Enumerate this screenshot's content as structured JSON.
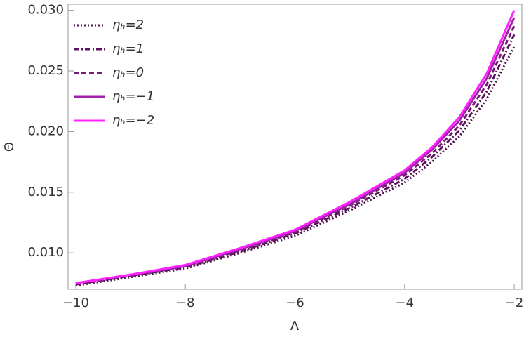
{
  "chart_data": {
    "type": "line",
    "x_label": "Λ",
    "y_label": "Θ",
    "x": [
      -10,
      -9,
      -8,
      -7,
      -6,
      -5,
      -4,
      -3.5,
      -3,
      -2.5,
      -2
    ],
    "series": [
      {
        "name": "ηₕ=2",
        "color": "#4d1049",
        "dash": "dotted",
        "values": [
          0.0073,
          0.008,
          0.0087,
          0.01,
          0.0114,
          0.0135,
          0.0158,
          0.0175,
          0.0196,
          0.0227,
          0.027
        ]
      },
      {
        "name": "ηₕ=1",
        "color": "#5c135e",
        "dash": "dashdot",
        "values": [
          0.0074,
          0.0081,
          0.0088,
          0.0101,
          0.0116,
          0.0137,
          0.0161,
          0.0179,
          0.0201,
          0.0233,
          0.028
        ]
      },
      {
        "name": "ηₕ=0",
        "color": "#741a75",
        "dash": "dashed",
        "values": [
          0.0074,
          0.0081,
          0.0089,
          0.0102,
          0.0117,
          0.0139,
          0.0164,
          0.0182,
          0.0205,
          0.0239,
          0.0287
        ]
      },
      {
        "name": "ηₕ=−1",
        "color": "#a020a8",
        "dash": "solid",
        "values": [
          0.0075,
          0.0082,
          0.0089,
          0.0103,
          0.0118,
          0.014,
          0.0166,
          0.0185,
          0.0209,
          0.0244,
          0.0294
        ]
      },
      {
        "name": "ηₕ=−2",
        "color": "#ff22ff",
        "dash": "solid",
        "values": [
          0.0075,
          0.0082,
          0.009,
          0.0104,
          0.0119,
          0.0142,
          0.0168,
          0.0187,
          0.0212,
          0.0248,
          0.03
        ]
      }
    ],
    "xlim": [
      -10.14,
      -1.86
    ],
    "ylim": [
      0.007,
      0.0305
    ],
    "xticks": [
      {
        "value": -10,
        "label": "−10"
      },
      {
        "value": -8,
        "label": "−8"
      },
      {
        "value": -6,
        "label": "−6"
      },
      {
        "value": -4,
        "label": "−4"
      },
      {
        "value": -2,
        "label": "−2"
      }
    ],
    "yticks": [
      {
        "value": 0.01,
        "label": "0.010"
      },
      0.015,
      {
        "value": 0.02,
        "label": "0.020"
      },
      0.025,
      {
        "value": 0.03,
        "label": "0.030"
      }
    ],
    "grid": false,
    "legend": "upper left"
  }
}
